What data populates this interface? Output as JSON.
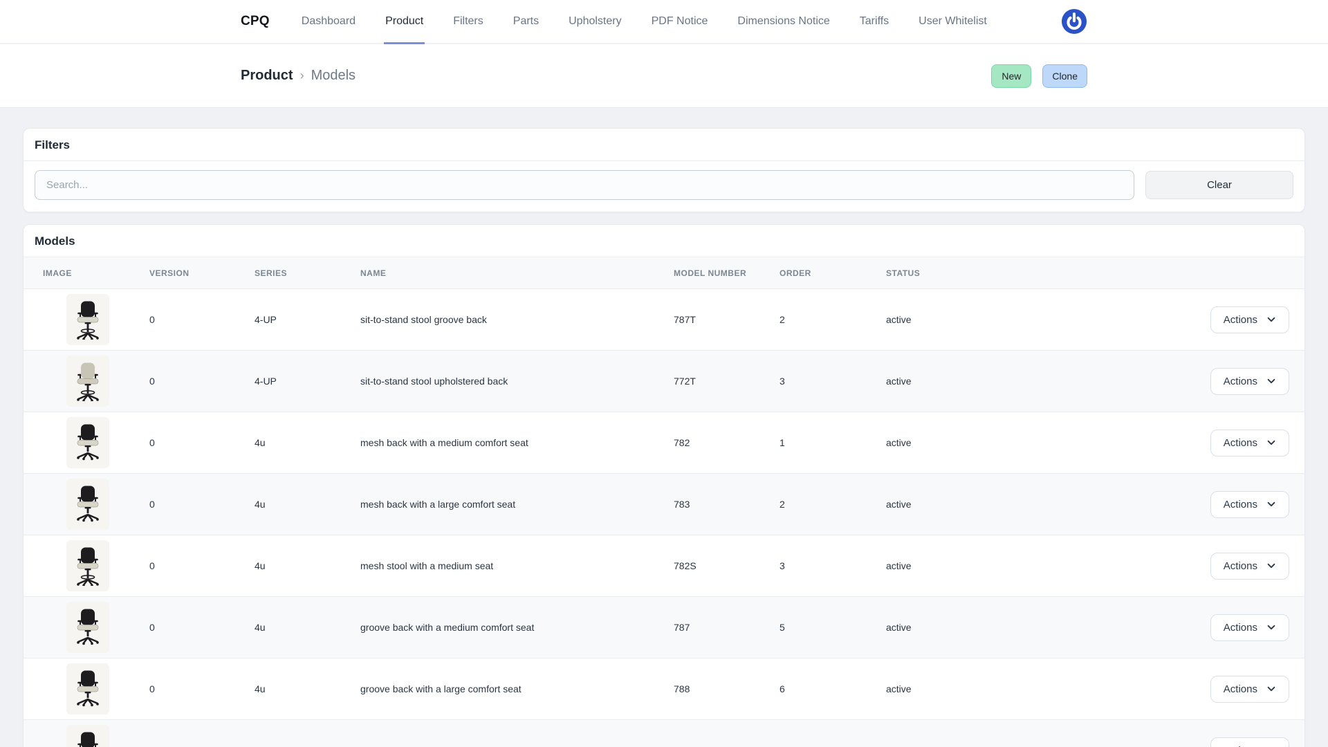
{
  "nav": {
    "brand": "CPQ",
    "items": [
      {
        "label": "Dashboard",
        "active": false
      },
      {
        "label": "Product",
        "active": true
      },
      {
        "label": "Filters",
        "active": false
      },
      {
        "label": "Parts",
        "active": false
      },
      {
        "label": "Upholstery",
        "active": false
      },
      {
        "label": "PDF Notice",
        "active": false
      },
      {
        "label": "Dimensions Notice",
        "active": false
      },
      {
        "label": "Tariffs",
        "active": false
      },
      {
        "label": "User Whitelist",
        "active": false
      }
    ],
    "active_underline_color": "#7b90dc",
    "power_icon_color": "#2b52c7"
  },
  "header": {
    "breadcrumb": {
      "parent": "Product",
      "separator": "›",
      "current": "Models"
    },
    "new_button": {
      "label": "New",
      "bg": "#a5e7c3",
      "border": "#79d8a8"
    },
    "clone_button": {
      "label": "Clone",
      "bg": "#bdd8f8",
      "border": "#8fb9f1"
    }
  },
  "filters_card": {
    "title": "Filters",
    "search": {
      "placeholder": "Search...",
      "value": ""
    },
    "clear_label": "Clear"
  },
  "models_card": {
    "title": "Models",
    "columns": [
      "IMAGE",
      "VERSION",
      "SERIES",
      "NAME",
      "MODEL NUMBER",
      "ORDER",
      "STATUS"
    ],
    "actions_label": "Actions",
    "rows": [
      {
        "image": "stool-black",
        "version": "0",
        "series": "4-UP",
        "name": "sit-to-stand stool groove back",
        "model_number": "787T",
        "order": "2",
        "status": "active"
      },
      {
        "image": "stool-beige",
        "version": "0",
        "series": "4-UP",
        "name": "sit-to-stand stool upholstered back",
        "model_number": "772T",
        "order": "3",
        "status": "active"
      },
      {
        "image": "chair-black",
        "version": "0",
        "series": "4u",
        "name": "mesh back with a medium comfort seat",
        "model_number": "782",
        "order": "1",
        "status": "active"
      },
      {
        "image": "chair-black",
        "version": "0",
        "series": "4u",
        "name": "mesh back with a large comfort seat",
        "model_number": "783",
        "order": "2",
        "status": "active"
      },
      {
        "image": "stool-black",
        "version": "0",
        "series": "4u",
        "name": "mesh stool with a medium seat",
        "model_number": "782S",
        "order": "3",
        "status": "active"
      },
      {
        "image": "chair-black",
        "version": "0",
        "series": "4u",
        "name": "groove back with a medium comfort seat",
        "model_number": "787",
        "order": "5",
        "status": "active"
      },
      {
        "image": "chair-black",
        "version": "0",
        "series": "4u",
        "name": "groove back with a large comfort seat",
        "model_number": "788",
        "order": "6",
        "status": "active"
      },
      {
        "image": "chair-black",
        "version": "",
        "series": "",
        "name": "",
        "model_number": "",
        "order": "",
        "status": ""
      }
    ]
  }
}
